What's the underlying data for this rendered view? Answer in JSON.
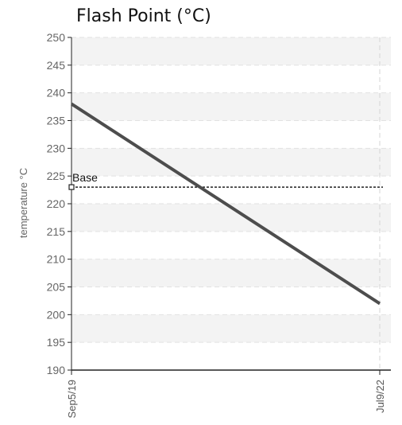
{
  "chart_data": {
    "type": "line",
    "title": "Flash Point (°C)",
    "ylabel": "temperature °C",
    "xlabel": "",
    "ylim": [
      190,
      250
    ],
    "yticks": [
      190,
      195,
      200,
      205,
      210,
      215,
      220,
      225,
      230,
      235,
      240,
      245,
      250
    ],
    "x": [
      "Sep5/19",
      "Jul9/22"
    ],
    "series": [
      {
        "values": [
          238,
          202
        ],
        "color": "#4d4d4d"
      }
    ],
    "reference_line": {
      "label": "Base",
      "value": 223,
      "style": "dashed",
      "color": "#222222"
    },
    "grid": true,
    "band_color": "#f3f3f3"
  }
}
